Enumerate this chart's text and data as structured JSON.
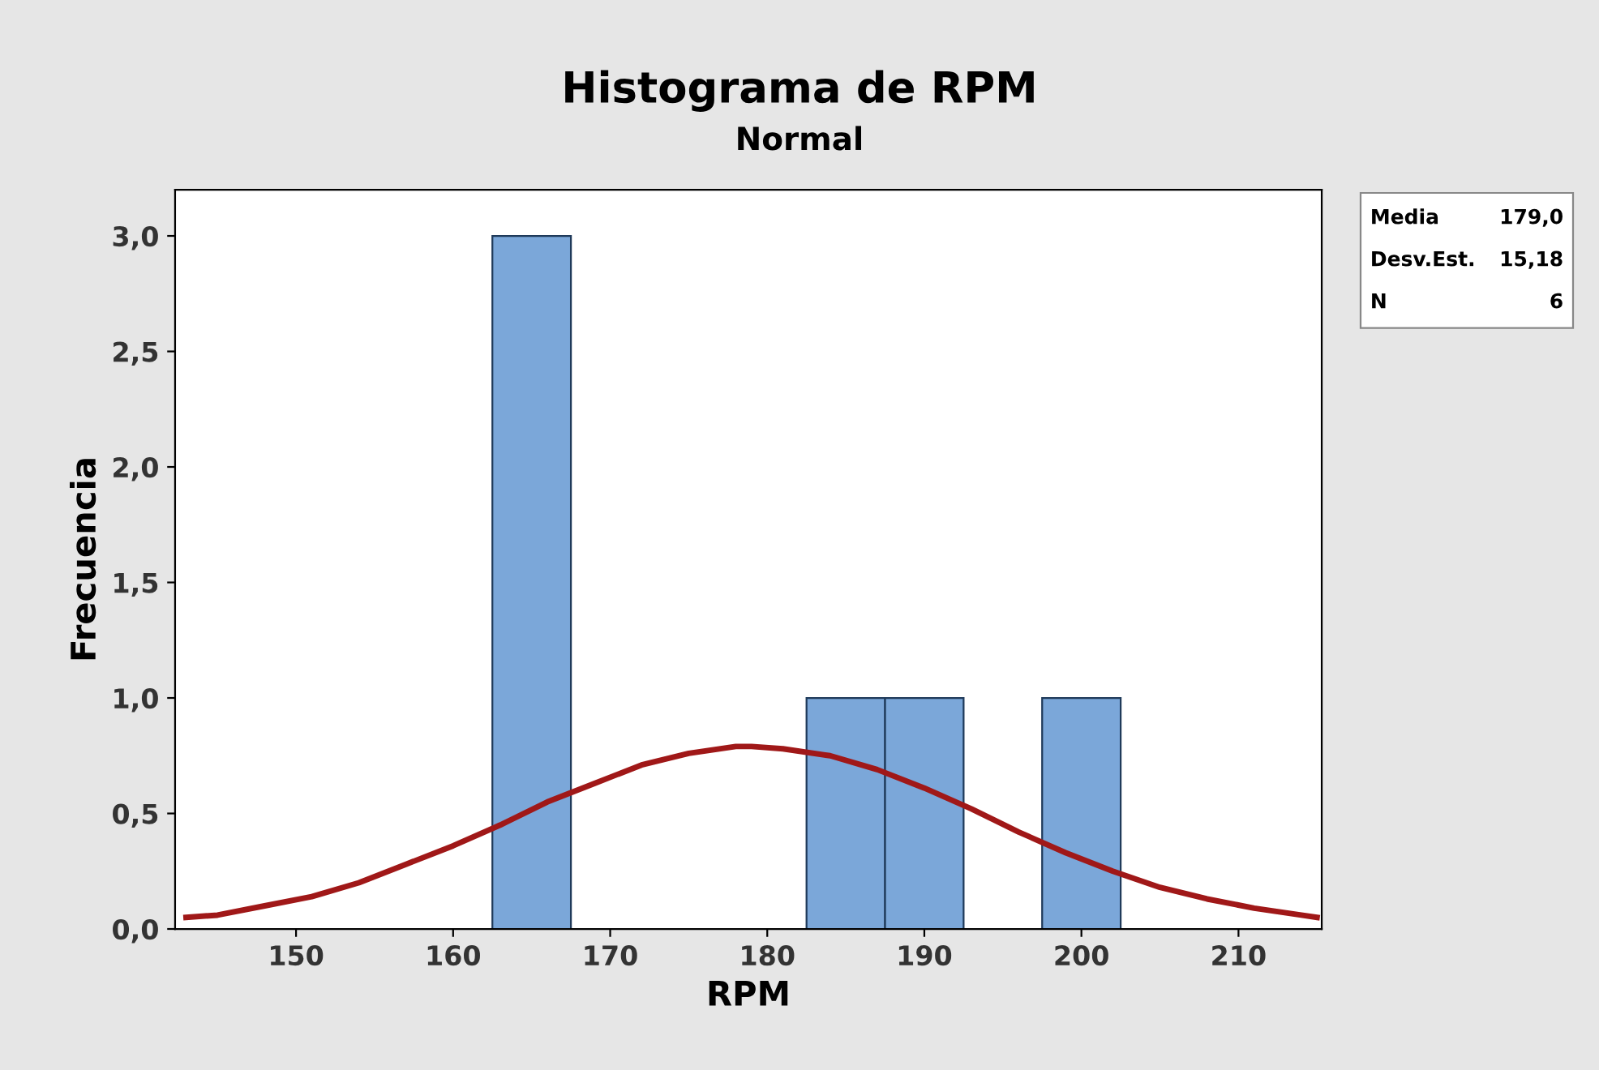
{
  "chart_data": {
    "type": "histogram",
    "title": "Histograma de RPM",
    "subtitle": "Normal",
    "xlabel": "RPM",
    "ylabel": "Frecuencia",
    "bins": [
      162.5,
      167.5,
      172.5,
      177.5,
      182.5,
      187.5,
      192.5,
      197.5,
      202.5
    ],
    "values": [
      3,
      0,
      0,
      0,
      1,
      1,
      0,
      1
    ],
    "color": "#7ba7d9",
    "series": [
      {
        "type": "line",
        "color": "#a01818",
        "x": [
          143,
          145,
          148,
          151,
          154,
          157,
          160,
          163,
          166,
          169,
          172,
          175,
          178,
          179,
          181,
          184,
          187,
          190,
          193,
          196,
          199,
          202,
          205,
          208,
          211,
          214,
          215
        ],
        "values": [
          0.05,
          0.06,
          0.1,
          0.14,
          0.2,
          0.28,
          0.36,
          0.45,
          0.55,
          0.63,
          0.71,
          0.76,
          0.79,
          0.79,
          0.78,
          0.75,
          0.69,
          0.61,
          0.52,
          0.42,
          0.33,
          0.25,
          0.18,
          0.13,
          0.09,
          0.06,
          0.05
        ]
      }
    ],
    "xlim": [
      142.3,
      215.3
    ],
    "xticks": [
      150,
      160,
      170,
      180,
      190,
      200,
      210
    ],
    "ylim": [
      0,
      3.2
    ],
    "yticks": [
      {
        "value": 0,
        "label": "0,0"
      },
      {
        "value": 0.5,
        "label": "0,5"
      },
      {
        "value": 1,
        "label": "1,0"
      },
      {
        "value": 1.5,
        "label": "1,5"
      },
      {
        "value": 2,
        "label": "2,0"
      },
      {
        "value": 2.5,
        "label": "2,5"
      },
      {
        "value": 3,
        "label": "3,0"
      }
    ],
    "grid": false,
    "legend": false,
    "annotations": [
      "Media",
      "179,0",
      "Desv.Est.",
      "15,18",
      "N",
      "6"
    ]
  }
}
